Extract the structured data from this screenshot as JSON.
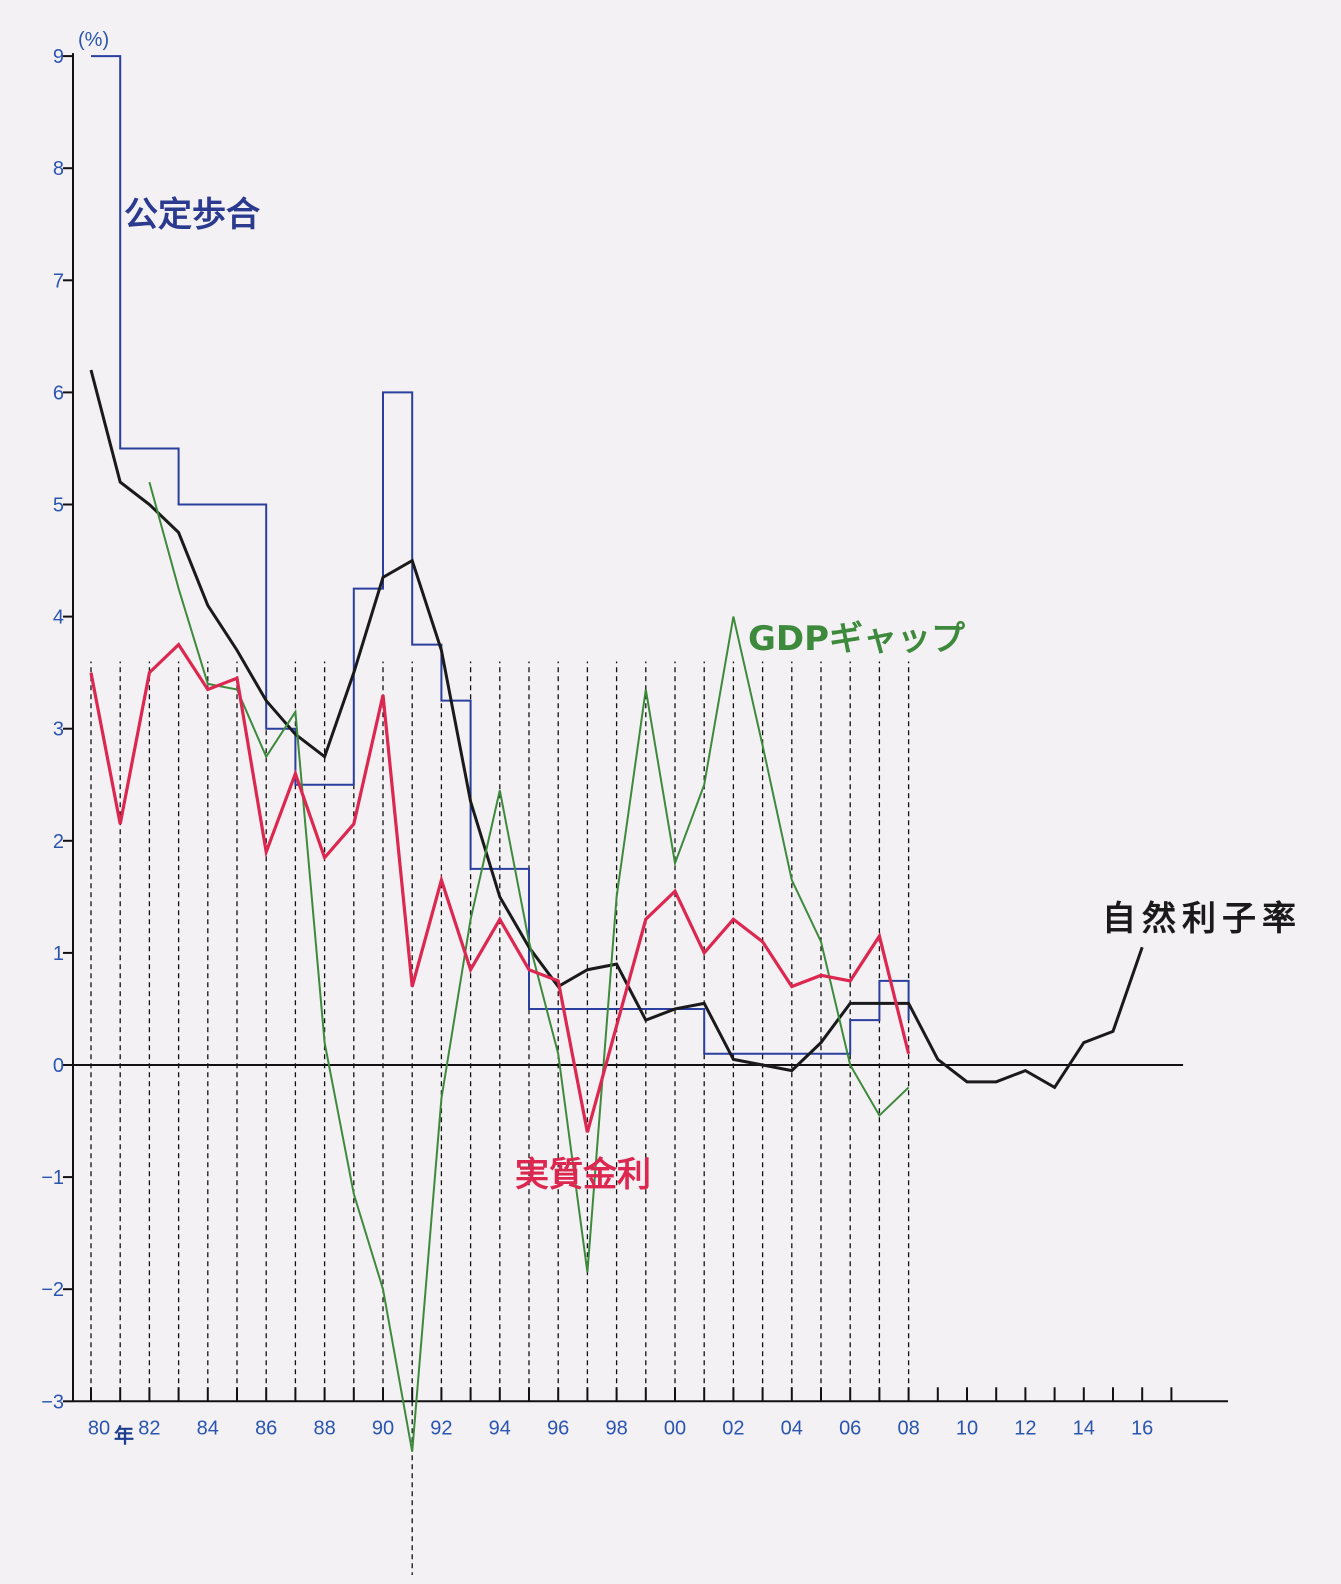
{
  "chart_data": {
    "type": "line",
    "title": "",
    "xlabel": "",
    "ylabel": "",
    "y_unit_label": "(%)",
    "ylim": [
      -3,
      9
    ],
    "yticks": [
      9,
      8,
      7,
      6,
      5,
      4,
      3,
      2,
      1,
      0,
      -1,
      -2,
      -3
    ],
    "xlim": [
      1980,
      2017
    ],
    "xticks": [
      {
        "year": 1980,
        "label": "80",
        "suffix": "年"
      },
      {
        "year": 1982,
        "label": "82"
      },
      {
        "year": 1984,
        "label": "84"
      },
      {
        "year": 1986,
        "label": "86"
      },
      {
        "year": 1988,
        "label": "88"
      },
      {
        "year": 1990,
        "label": "90"
      },
      {
        "year": 1992,
        "label": "92"
      },
      {
        "year": 1994,
        "label": "94"
      },
      {
        "year": 1996,
        "label": "96"
      },
      {
        "year": 1998,
        "label": "98"
      },
      {
        "year": 2000,
        "label": "00"
      },
      {
        "year": 2002,
        "label": "02"
      },
      {
        "year": 2004,
        "label": "04"
      },
      {
        "year": 2006,
        "label": "06"
      },
      {
        "year": 2008,
        "label": "08"
      },
      {
        "year": 2010,
        "label": "10"
      },
      {
        "year": 2012,
        "label": "12"
      },
      {
        "year": 2014,
        "label": "14"
      },
      {
        "year": 2016,
        "label": "16"
      }
    ],
    "guide_years": [
      1980,
      1981,
      1982,
      1983,
      1984,
      1985,
      1986,
      1987,
      1988,
      1989,
      1990,
      1991,
      1992,
      1993,
      1994,
      1995,
      1996,
      1997,
      1998,
      1999,
      2000,
      2001,
      2002,
      2003,
      2004,
      2005,
      2006,
      2007,
      2008
    ],
    "grid": false,
    "legend": "inline labels",
    "series": [
      {
        "name": "公定歩合",
        "color": "#2a3f9e",
        "step": true,
        "x": [
          1980,
          1981,
          1982,
          1983,
          1984,
          1985,
          1986,
          1987,
          1988,
          1989,
          1990,
          1991,
          1992,
          1993,
          1994,
          1995,
          1996,
          1997,
          1998,
          1999,
          2000,
          2001,
          2002,
          2003,
          2004,
          2005,
          2006,
          2007,
          2008
        ],
        "y": [
          9.0,
          5.5,
          5.5,
          5.0,
          5.0,
          5.0,
          3.0,
          2.5,
          2.5,
          4.25,
          6.0,
          3.75,
          3.25,
          1.75,
          1.75,
          0.5,
          0.5,
          0.5,
          0.5,
          0.5,
          0.5,
          0.1,
          0.1,
          0.1,
          0.1,
          0.1,
          0.4,
          0.75,
          0.4
        ]
      },
      {
        "name": "自然利子率",
        "color": "#1a1a1a",
        "x": [
          1980,
          1981,
          1982,
          1983,
          1984,
          1985,
          1986,
          1987,
          1988,
          1989,
          1990,
          1991,
          1992,
          1993,
          1994,
          1995,
          1996,
          1997,
          1998,
          1999,
          2000,
          2001,
          2002,
          2003,
          2004,
          2005,
          2006,
          2007,
          2008,
          2009,
          2010,
          2011,
          2012,
          2013,
          2014,
          2015,
          2016
        ],
        "y": [
          6.2,
          5.2,
          5.0,
          4.75,
          4.1,
          3.7,
          3.25,
          2.95,
          2.75,
          3.5,
          4.35,
          4.5,
          3.7,
          2.35,
          1.5,
          1.05,
          0.7,
          0.85,
          0.9,
          0.4,
          0.5,
          0.55,
          0.05,
          0.0,
          -0.05,
          0.2,
          0.55,
          0.55,
          0.55,
          0.05,
          -0.15,
          -0.15,
          -0.05,
          -0.2,
          0.2,
          0.3,
          1.05
        ]
      },
      {
        "name": "GDPギャップ",
        "color": "#3d8a3d",
        "x": [
          1982,
          1983,
          1984,
          1985,
          1986,
          1987,
          1988,
          1989,
          1990,
          1991,
          1992,
          1993,
          1994,
          1995,
          1996,
          1997,
          1998,
          1999,
          2000,
          2001,
          2002,
          2003,
          2004,
          2005,
          2006,
          2007,
          2008
        ],
        "y": [
          5.2,
          4.25,
          3.4,
          3.35,
          2.75,
          3.15,
          0.2,
          -1.15,
          -2.0,
          -3.45,
          -0.3,
          1.3,
          2.45,
          1.1,
          0.1,
          -1.85,
          1.5,
          3.35,
          1.8,
          2.5,
          4.0,
          2.85,
          1.65,
          1.1,
          0.0,
          -0.45,
          -0.2
        ]
      },
      {
        "name": "実質金利",
        "color": "#dc2850",
        "x": [
          1980,
          1981,
          1982,
          1983,
          1984,
          1985,
          1986,
          1987,
          1988,
          1989,
          1990,
          1991,
          1992,
          1993,
          1994,
          1995,
          1996,
          1997,
          1998,
          1999,
          2000,
          2001,
          2002,
          2003,
          2004,
          2005,
          2006,
          2007,
          2008
        ],
        "y": [
          3.5,
          2.15,
          3.5,
          3.75,
          3.35,
          3.45,
          1.9,
          2.6,
          1.85,
          2.15,
          3.3,
          0.7,
          1.65,
          0.85,
          1.3,
          0.85,
          0.75,
          -0.6,
          0.35,
          1.3,
          1.55,
          1.0,
          1.3,
          1.1,
          0.7,
          0.8,
          0.75,
          1.15,
          0.1
        ]
      }
    ]
  }
}
